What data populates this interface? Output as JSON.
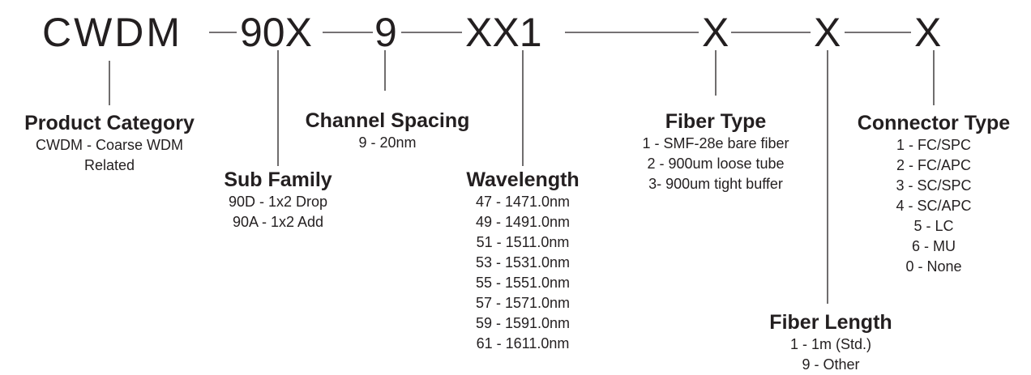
{
  "code": {
    "prefix": "CWDM",
    "sub_family": "90X",
    "channel_spacing": "9",
    "wavelength": "XX1",
    "fiber_type": "X",
    "fiber_length": "X",
    "connector_type": "X"
  },
  "product_category": {
    "title": "Product Category",
    "lines": [
      "CWDM - Coarse WDM",
      "Related"
    ]
  },
  "sub_family": {
    "title": "Sub Family",
    "options": [
      "90D - 1x2 Drop",
      "90A - 1x2 Add"
    ]
  },
  "channel_spacing": {
    "title": "Channel Spacing",
    "options": [
      "9 - 20nm"
    ]
  },
  "wavelength": {
    "title": "Wavelength",
    "options": [
      "47 - 1471.0nm",
      "49 - 1491.0nm",
      "51 - 1511.0nm",
      "53 - 1531.0nm",
      "55 - 1551.0nm",
      "57 - 1571.0nm",
      "59 - 1591.0nm",
      "61 - 1611.0nm"
    ]
  },
  "fiber_type": {
    "title": "Fiber Type",
    "options": [
      "1 - SMF-28e bare fiber",
      "2 - 900um loose tube",
      "3- 900um tight buffer"
    ]
  },
  "fiber_length": {
    "title": "Fiber Length",
    "options": [
      "1 - 1m (Std.)",
      "9 - Other"
    ]
  },
  "connector_type": {
    "title": "Connector Type",
    "options": [
      "1 - FC/SPC",
      "2 - FC/APC",
      "3 - SC/SPC",
      "4 - SC/APC",
      "5 - LC",
      "6 - MU",
      "0 - None"
    ]
  }
}
